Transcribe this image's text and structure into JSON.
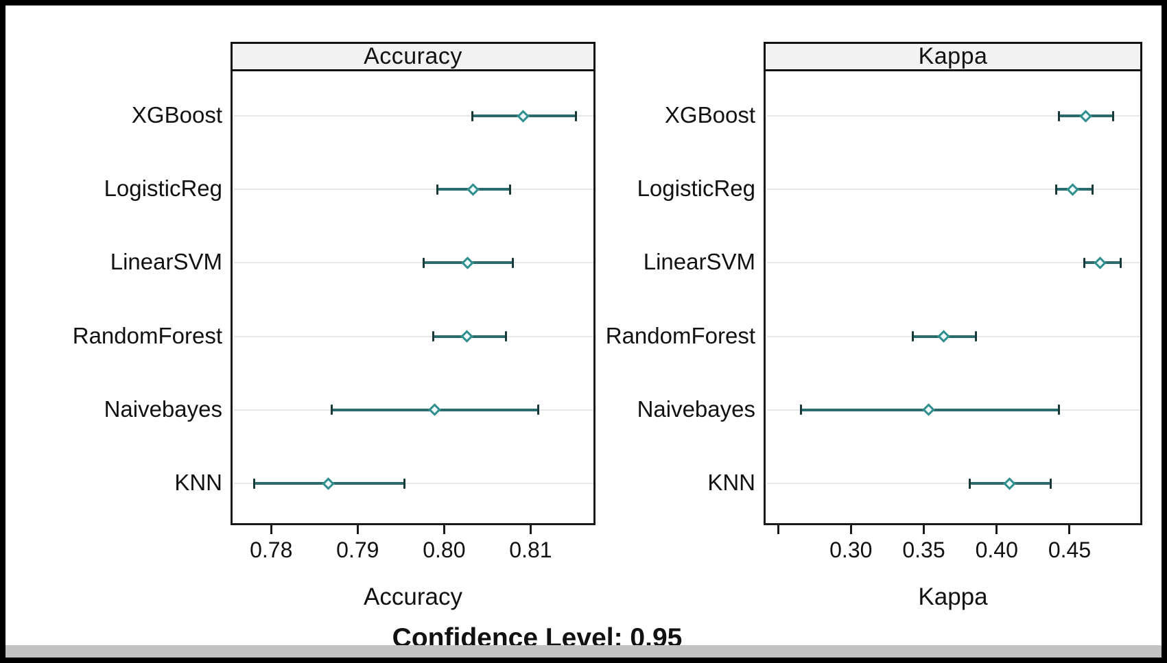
{
  "figure": {
    "footer_label": "Confidence Level: 0.95"
  },
  "models": [
    "XGBoost",
    "LogisticReg",
    "LinearSVM",
    "RandomForest",
    "Naivebayes",
    "KNN"
  ],
  "colors": {
    "interval_line": "#2b6b6b",
    "interval_cap": "#17393a",
    "diamond_border": "#2f8e8e",
    "diamond_fill": "#f2fbfb",
    "gridline": "#e7e7e7",
    "header_bg": "#f2f2f2",
    "panel_border": "#1a1a1a",
    "text": "#111111",
    "bottom_band": "#c2c2c2"
  },
  "chart_data": [
    {
      "type": "scatter",
      "variant": "dotplot-with-95ci",
      "title": "Accuracy",
      "xlabel": "Accuracy",
      "grid": "horizontal",
      "legend": null,
      "xlim": [
        0.7753,
        0.8175
      ],
      "ticks": [
        {
          "value": 0.78,
          "label": "0.78"
        },
        {
          "value": 0.79,
          "label": "0.79"
        },
        {
          "value": 0.8,
          "label": "0.80"
        },
        {
          "value": 0.81,
          "label": "0.81"
        }
      ],
      "categories": [
        "XGBoost",
        "LogisticReg",
        "LinearSVM",
        "RandomForest",
        "Naivebayes",
        "KNN"
      ],
      "series": [
        {
          "name": "XGBoost",
          "mean": 0.8089,
          "lower": 0.803,
          "upper": 0.815
        },
        {
          "name": "LogisticReg",
          "mean": 0.8031,
          "lower": 0.799,
          "upper": 0.8074
        },
        {
          "name": "LinearSVM",
          "mean": 0.8025,
          "lower": 0.7974,
          "upper": 0.8077
        },
        {
          "name": "RandomForest",
          "mean": 0.8024,
          "lower": 0.7985,
          "upper": 0.8069
        },
        {
          "name": "Naivebayes",
          "mean": 0.7987,
          "lower": 0.7868,
          "upper": 0.8106
        },
        {
          "name": "KNN",
          "mean": 0.7864,
          "lower": 0.7778,
          "upper": 0.7952
        }
      ]
    },
    {
      "type": "scatter",
      "variant": "dotplot-with-95ci",
      "title": "Kappa",
      "xlabel": "Kappa",
      "grid": "horizontal",
      "legend": null,
      "xlim": [
        0.2401,
        0.4999
      ],
      "ticks": [
        {
          "value": 0.25,
          "label": ""
        },
        {
          "value": 0.3,
          "label": "0.30"
        },
        {
          "value": 0.35,
          "label": "0.35"
        },
        {
          "value": 0.4,
          "label": "0.40"
        },
        {
          "value": 0.45,
          "label": "0.45"
        }
      ],
      "categories": [
        "XGBoost",
        "LogisticReg",
        "LinearSVM",
        "RandomForest",
        "Naivebayes",
        "KNN"
      ],
      "series": [
        {
          "name": "XGBoost",
          "mean": 0.4596,
          "lower": 0.4415,
          "upper": 0.4784
        },
        {
          "name": "LogisticReg",
          "mean": 0.4509,
          "lower": 0.4392,
          "upper": 0.4643
        },
        {
          "name": "LinearSVM",
          "mean": 0.4695,
          "lower": 0.4585,
          "upper": 0.4836
        },
        {
          "name": "RandomForest",
          "mean": 0.3623,
          "lower": 0.3411,
          "upper": 0.3843
        },
        {
          "name": "Naivebayes",
          "mean": 0.3521,
          "lower": 0.2642,
          "upper": 0.4415
        },
        {
          "name": "KNN",
          "mean": 0.4075,
          "lower": 0.3802,
          "upper": 0.4356
        }
      ]
    }
  ]
}
